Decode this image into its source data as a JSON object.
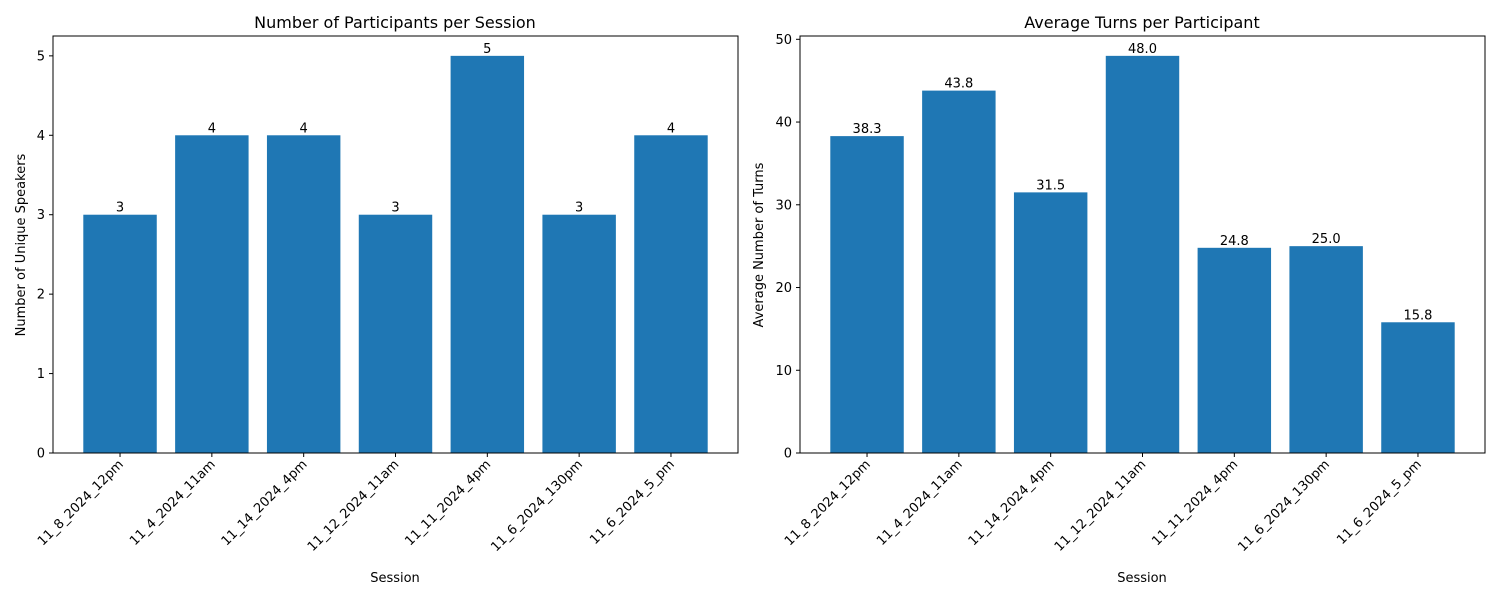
{
  "chart_data": [
    {
      "type": "bar",
      "title": "Number of Participants per Session",
      "xlabel": "Session",
      "ylabel": "Number of Unique Speakers",
      "categories": [
        "11_8_2024_12pm",
        "11_4_2024_11am",
        "11_14_2024_4pm",
        "11_12_2024_11am",
        "11_11_2024_4pm",
        "11_6_2024_130pm",
        "11_6_2024_5_pm"
      ],
      "values": [
        3,
        4,
        4,
        3,
        5,
        3,
        4
      ],
      "data_labels": [
        "3",
        "4",
        "4",
        "3",
        "5",
        "3",
        "4"
      ],
      "ylim": [
        0,
        5.25
      ],
      "yticks": [
        0,
        1,
        2,
        3,
        4,
        5
      ],
      "grid": false,
      "color": "#1f77b4"
    },
    {
      "type": "bar",
      "title": "Average Turns per Participant",
      "xlabel": "Session",
      "ylabel": "Average Number of Turns",
      "categories": [
        "11_8_2024_12pm",
        "11_4_2024_11am",
        "11_14_2024_4pm",
        "11_12_2024_11am",
        "11_11_2024_4pm",
        "11_6_2024_130pm",
        "11_6_2024_5_pm"
      ],
      "values": [
        38.3,
        43.8,
        31.5,
        48.0,
        24.8,
        25.0,
        15.8
      ],
      "data_labels": [
        "38.3",
        "43.8",
        "31.5",
        "48.0",
        "24.8",
        "25.0",
        "15.8"
      ],
      "ylim": [
        0,
        50.4
      ],
      "yticks": [
        0,
        10,
        20,
        30,
        40,
        50
      ],
      "grid": false,
      "color": "#1f77b4"
    }
  ]
}
